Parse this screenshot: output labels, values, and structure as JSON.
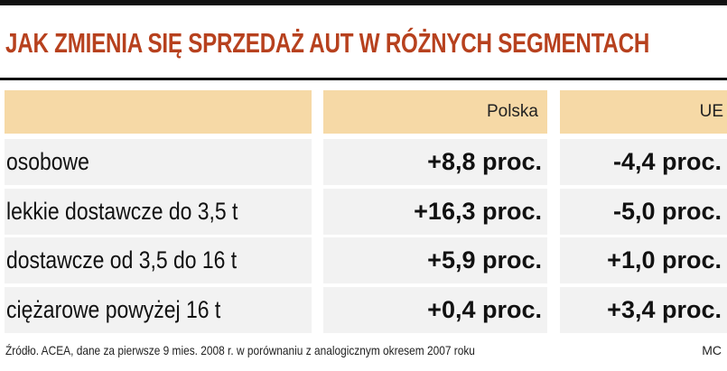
{
  "header": {
    "title": "JAK ZMIENIA SIĘ SPRZEDAŻ AUT W RÓŻNYCH SEGMENTACH"
  },
  "table": {
    "columns": [
      "Polska",
      "UE"
    ],
    "rows": [
      [
        "osobowe",
        "+8,8 proc.",
        "-4,4 proc."
      ],
      [
        "lekkie dostawcze do 3,5 t",
        "+16,3 proc.",
        "-5,0 proc."
      ],
      [
        "dostawcze od 3,5 do 16 t",
        "+5,9 proc.",
        "+1,0 proc."
      ],
      [
        "ciężarowe powyżej 16 t",
        "+0,4 proc.",
        "+3,4 proc."
      ]
    ]
  },
  "footer": {
    "source": "Źródło. ACEA, dane za pierwsze 9 mies. 2008 r. w porównaniu z analogicznym okresem 2007 roku",
    "author": "MC"
  }
}
